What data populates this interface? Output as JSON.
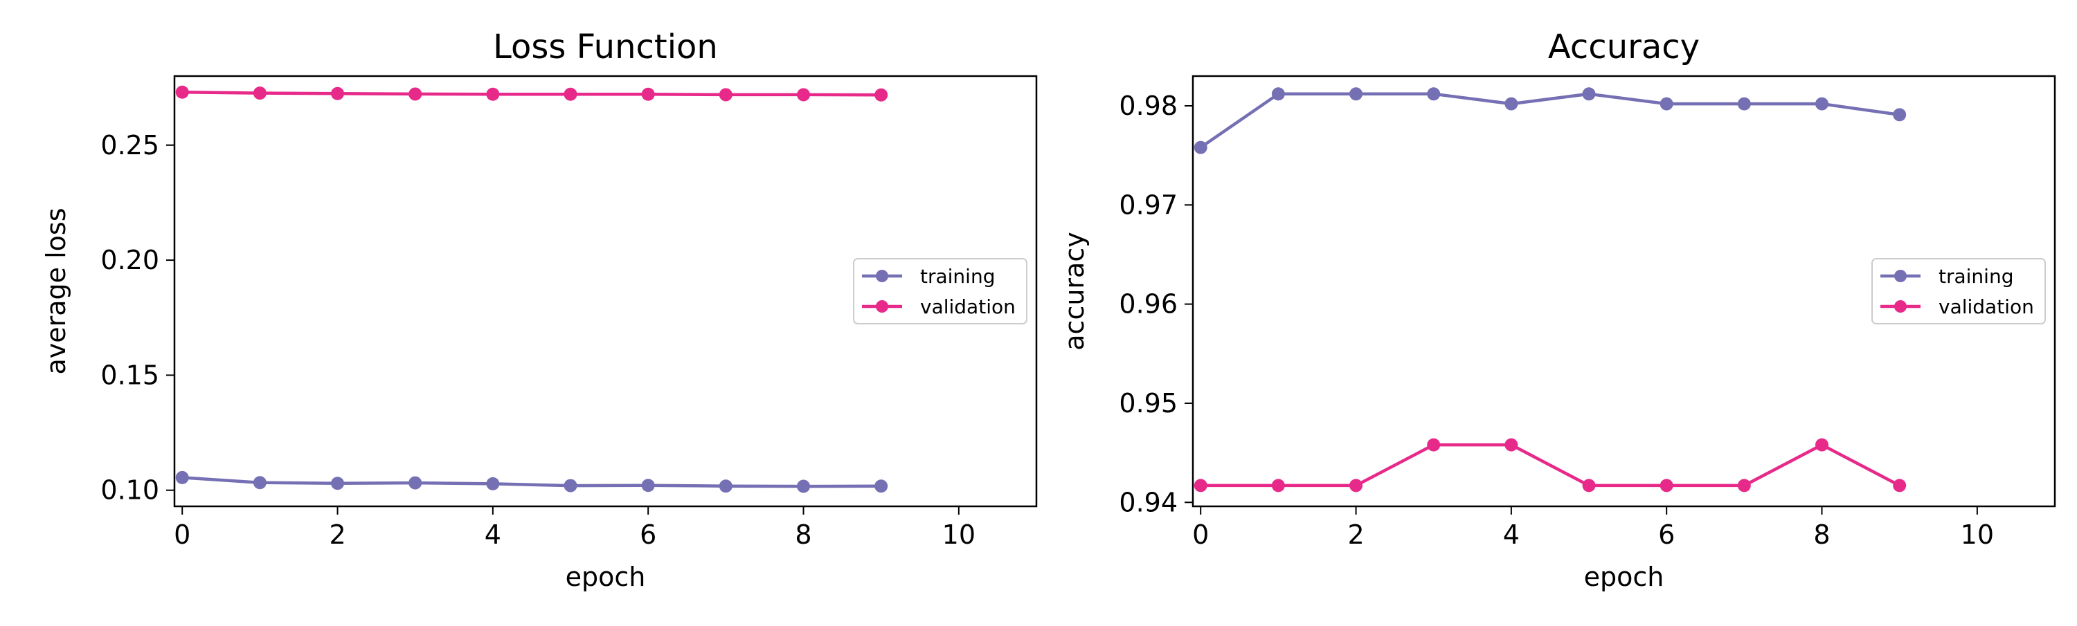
{
  "chart_data": [
    {
      "type": "line",
      "title": "Loss Function",
      "xlabel": "epoch",
      "ylabel": "average loss",
      "x": [
        0,
        1,
        2,
        3,
        4,
        5,
        6,
        7,
        8,
        9
      ],
      "xlim": [
        -0.1,
        11
      ],
      "ylim": [
        0.093,
        0.28
      ],
      "xticks": [
        0,
        2,
        4,
        6,
        8,
        10
      ],
      "xtick_labels": [
        "0",
        "2",
        "4",
        "6",
        "8",
        "10"
      ],
      "yticks": [
        0.1,
        0.15,
        0.2,
        0.25
      ],
      "ytick_labels": [
        "0.10",
        "0.15",
        "0.20",
        "0.25"
      ],
      "grid": false,
      "legend": "center-right",
      "series": [
        {
          "name": "training",
          "color": "#7570b3",
          "values": [
            0.1055,
            0.1033,
            0.103,
            0.1032,
            0.1028,
            0.102,
            0.1021,
            0.1018,
            0.1017,
            0.1018
          ]
        },
        {
          "name": "validation",
          "color": "#e7298a",
          "values": [
            0.273,
            0.2726,
            0.2724,
            0.2722,
            0.2721,
            0.2721,
            0.2721,
            0.2719,
            0.2719,
            0.2718
          ]
        }
      ]
    },
    {
      "type": "line",
      "title": "Accuracy",
      "xlabel": "epoch",
      "ylabel": "accuracy",
      "x": [
        0,
        1,
        2,
        3,
        4,
        5,
        6,
        7,
        8,
        9
      ],
      "xlim": [
        -0.1,
        11
      ],
      "ylim": [
        0.9396,
        0.983
      ],
      "xticks": [
        0,
        2,
        4,
        6,
        8,
        10
      ],
      "xtick_labels": [
        "0",
        "2",
        "4",
        "6",
        "8",
        "10"
      ],
      "yticks": [
        0.94,
        0.95,
        0.96,
        0.97,
        0.98
      ],
      "ytick_labels": [
        "0.94",
        "0.95",
        "0.96",
        "0.97",
        "0.98"
      ],
      "grid": false,
      "legend": "center-right",
      "series": [
        {
          "name": "training",
          "color": "#7570b3",
          "values": [
            0.9758,
            0.9812,
            0.9812,
            0.9812,
            0.9802,
            0.9812,
            0.9802,
            0.9802,
            0.9802,
            0.9791
          ]
        },
        {
          "name": "validation",
          "color": "#e7298a",
          "values": [
            0.9417,
            0.9417,
            0.9417,
            0.9458,
            0.9458,
            0.9417,
            0.9417,
            0.9417,
            0.9458,
            0.9417
          ]
        }
      ]
    }
  ]
}
